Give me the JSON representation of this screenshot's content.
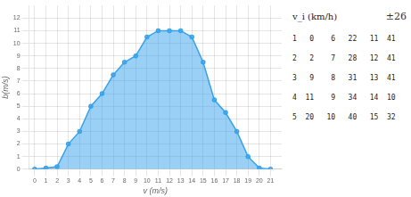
{
  "chart_data": {
    "type": "area",
    "xlabel": "v (m/s)",
    "ylabel": "b(m/s)",
    "x": [
      0,
      1,
      2,
      3,
      4,
      5,
      6,
      7,
      8,
      9,
      10,
      11,
      12,
      13,
      14,
      15,
      16,
      17,
      18,
      19,
      20,
      21
    ],
    "values": [
      0,
      0.1,
      0.2,
      2,
      3,
      5,
      6,
      7.5,
      8.5,
      9,
      10.5,
      11,
      11,
      11,
      10.5,
      8.5,
      5.5,
      4.5,
      3,
      1,
      0.1,
      0
    ],
    "xlim": [
      -0.5,
      22
    ],
    "ylim": [
      0,
      13
    ],
    "xticks": [
      0,
      1,
      2,
      3,
      4,
      5,
      6,
      7,
      8,
      9,
      10,
      11,
      12,
      13,
      14,
      15,
      16,
      17,
      18,
      19,
      20,
      21
    ],
    "yticks": [
      0,
      1,
      2,
      3,
      4,
      5,
      6,
      7,
      8,
      9,
      10,
      11,
      12
    ],
    "grid": true,
    "marker": "circle",
    "annotations": [
      "v_i (km/h)",
      "±26"
    ],
    "table_rows": [
      "1   0    6   22   11  41",
      "2   2    7   28   12  41",
      "3   9    8   31   13  41",
      "4  11    9   34   14  10",
      "5  20   10   40   15  32"
    ]
  }
}
